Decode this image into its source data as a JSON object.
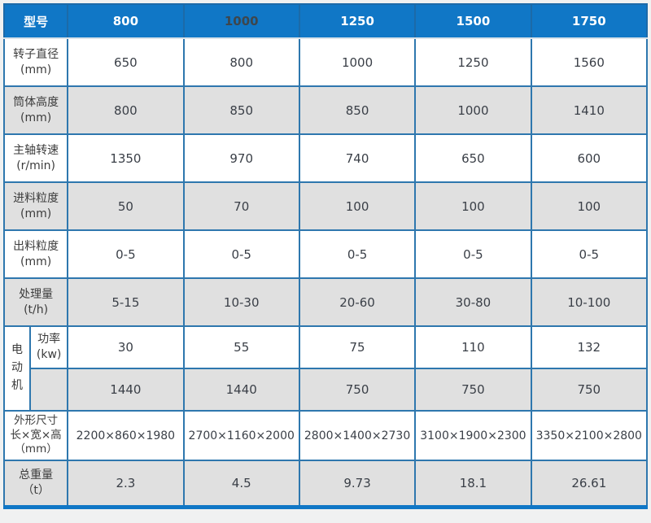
{
  "colors": {
    "header_bg": "#1077c6",
    "border_blue": "#2e77ae",
    "alt_row_bg": "#e0e0e0",
    "header_text": "#ffffff",
    "header_text_dark_variant": "#3e464c",
    "value_text": "#3a3f47",
    "page_bg": "#f0f1f1"
  },
  "table": {
    "header": {
      "model_label": "型号",
      "columns": [
        "800",
        "1000",
        "1250",
        "1500",
        "1750"
      ]
    },
    "rows": [
      {
        "label": "转子直径",
        "unit": "(mm)",
        "values": [
          "650",
          "800",
          "1000",
          "1250",
          "1560"
        ]
      },
      {
        "label": "筒体高度",
        "unit": "(mm)",
        "values": [
          "800",
          "850",
          "850",
          "1000",
          "1410"
        ]
      },
      {
        "label": "主轴转速",
        "unit": "(r/min)",
        "values": [
          "1350",
          "970",
          "740",
          "650",
          "600"
        ]
      },
      {
        "label": "进料粒度",
        "unit": "(mm)",
        "values": [
          "50",
          "70",
          "100",
          "100",
          "100"
        ]
      },
      {
        "label": "出料粒度",
        "unit": "(mm)",
        "values": [
          "0-5",
          "0-5",
          "0-5",
          "0-5",
          "0-5"
        ]
      },
      {
        "label": "处理量",
        "unit": "(t/h)",
        "values": [
          "5-15",
          "10-30",
          "20-60",
          "30-80",
          "10-100"
        ]
      }
    ],
    "motor": {
      "group_label": "电动机",
      "power": {
        "label": "功率",
        "unit": "(kw)",
        "values": [
          "30",
          "55",
          "75",
          "110",
          "132"
        ]
      },
      "speed": {
        "label": "",
        "values": [
          "1440",
          "1440",
          "750",
          "750",
          "750"
        ]
      }
    },
    "dimensions": {
      "label_line1": "外形尺寸",
      "label_line2": "长×宽×高",
      "label_line3": "（mm）",
      "values": [
        "2200×860×1980",
        "2700×1160×2000",
        "2800×1400×2730",
        "3100×1900×2300",
        "3350×2100×2800"
      ]
    },
    "weight": {
      "label": "总重量",
      "unit": "（t）",
      "values": [
        "2.3",
        "4.5",
        "9.73",
        "18.1",
        "26.61"
      ]
    }
  }
}
